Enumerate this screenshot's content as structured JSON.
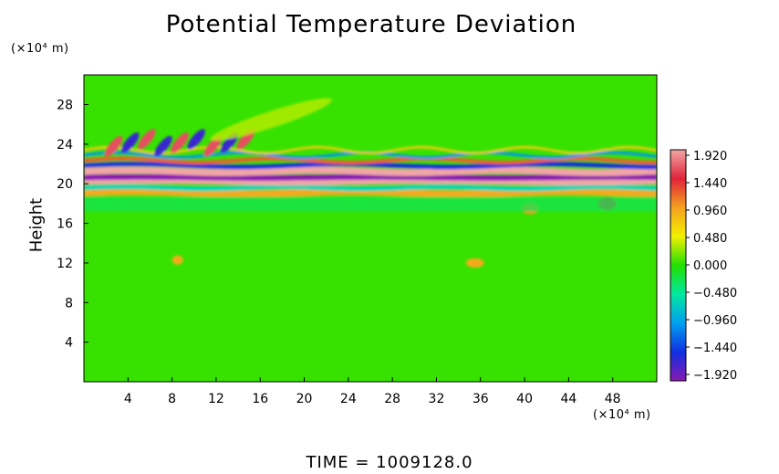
{
  "chart_data": {
    "type": "heatmap",
    "title": "Potential Temperature Deviation",
    "ylabel": "Height",
    "y_unit": "(×10⁴ m)",
    "x_unit": "(×10⁴ m)",
    "xlim": [
      0,
      52
    ],
    "ylim": [
      0,
      31
    ],
    "x_ticks": [
      4,
      8,
      12,
      16,
      20,
      24,
      28,
      32,
      36,
      40,
      44,
      48
    ],
    "y_ticks": [
      4,
      8,
      12,
      16,
      20,
      24,
      28
    ],
    "colorbar": {
      "ticks": [
        "1.920",
        "1.440",
        "0.960",
        "0.480",
        "0.000",
        "−0.480",
        "−0.960",
        "−1.440",
        "−1.920"
      ],
      "range": [
        -1.92,
        1.92
      ],
      "colors": [
        "#f2a6a6",
        "#e0243a",
        "#f5a020",
        "#f2f000",
        "#22e000",
        "#00e8a0",
        "#00a0f0",
        "#1030e0",
        "#8a18b4"
      ]
    },
    "field_features": [
      {
        "feature": "strong oscillating layer",
        "y_range": [
          18.5,
          23.5
        ]
      },
      {
        "feature": "negative band",
        "y_center": 20.5
      },
      {
        "feature": "positive band",
        "y_center": 21.5
      },
      {
        "feature": "wave train",
        "x_range": [
          0,
          14
        ],
        "y_range": [
          22,
          26
        ]
      },
      {
        "feature": "positive blob",
        "x": 47.5,
        "y": 18.0
      },
      {
        "feature": "positive blob",
        "x": 40.5,
        "y": 17.5
      }
    ]
  },
  "footer": {
    "time_label": "TIME = 1009128.0"
  }
}
